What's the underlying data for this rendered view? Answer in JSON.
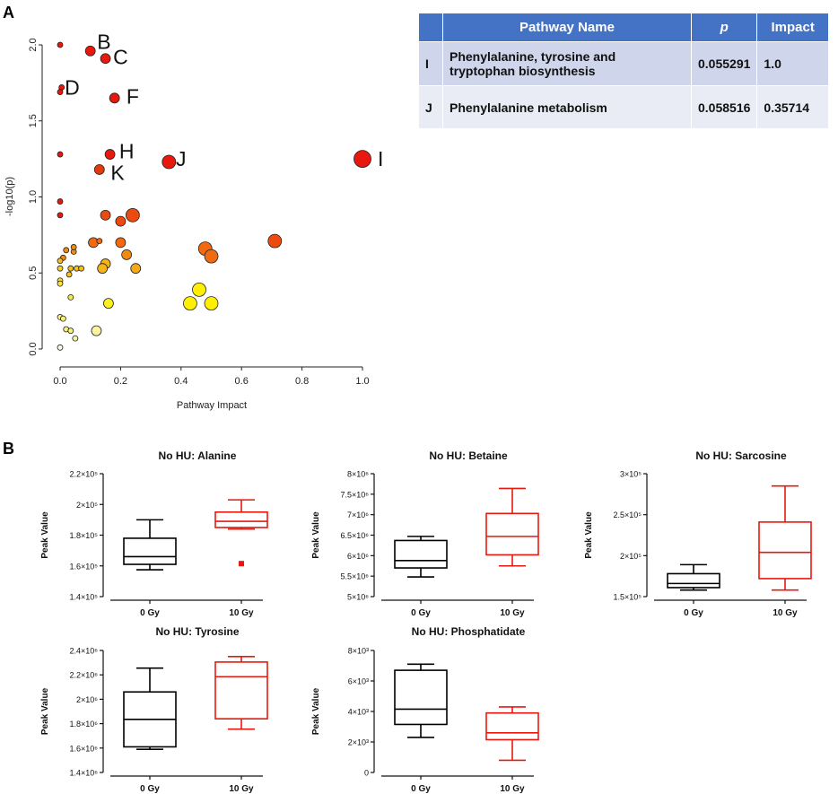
{
  "panels": {
    "a_label": "A",
    "b_label": "B"
  },
  "chart_data": [
    {
      "type": "scatter",
      "title": "",
      "xlabel": "Pathway Impact",
      "ylabel": "-log10(p)",
      "xlim": [
        0,
        1.0
      ],
      "ylim": [
        0,
        2.0
      ],
      "x_ticks": [
        "0.0",
        "0.2",
        "0.4",
        "0.6",
        "0.8",
        "1.0"
      ],
      "y_ticks": [
        "0.0",
        "0.5",
        "1.0",
        "1.5",
        "2.0"
      ],
      "points": [
        {
          "x": 0.0,
          "y": 2.0,
          "size": 1,
          "color": "#e8180e"
        },
        {
          "x": 0.1,
          "y": 1.96,
          "size": 2,
          "color": "#e8180e"
        },
        {
          "x": 0.15,
          "y": 1.91,
          "size": 2,
          "color": "#e8180e"
        },
        {
          "x": 0.005,
          "y": 1.72,
          "size": 1,
          "color": "#e8180e"
        },
        {
          "x": 0.0,
          "y": 1.69,
          "size": 1,
          "color": "#e8180e"
        },
        {
          "x": 0.18,
          "y": 1.65,
          "size": 2,
          "color": "#e8180e"
        },
        {
          "x": 0.0,
          "y": 1.28,
          "size": 1,
          "color": "#e8180e"
        },
        {
          "x": 0.165,
          "y": 1.28,
          "size": 2,
          "color": "#e8180e"
        },
        {
          "x": 0.36,
          "y": 1.23,
          "size": 3,
          "color": "#e8180e"
        },
        {
          "x": 1.0,
          "y": 1.25,
          "size": 4,
          "color": "#e8180e"
        },
        {
          "x": 0.13,
          "y": 1.18,
          "size": 2,
          "color": "#e23a0d"
        },
        {
          "x": 0.0,
          "y": 0.97,
          "size": 1,
          "color": "#e8180e"
        },
        {
          "x": 0.0,
          "y": 0.88,
          "size": 1,
          "color": "#e8180e"
        },
        {
          "x": 0.15,
          "y": 0.88,
          "size": 2,
          "color": "#ec4a0e"
        },
        {
          "x": 0.24,
          "y": 0.88,
          "size": 3,
          "color": "#ec4a0e"
        },
        {
          "x": 0.2,
          "y": 0.84,
          "size": 2,
          "color": "#ec4a0e"
        },
        {
          "x": 0.01,
          "y": 0.6,
          "size": 1,
          "color": "#f28a10"
        },
        {
          "x": 0.02,
          "y": 0.65,
          "size": 1,
          "color": "#f28a10"
        },
        {
          "x": 0.045,
          "y": 0.64,
          "size": 1,
          "color": "#f28a10"
        },
        {
          "x": 0.045,
          "y": 0.67,
          "size": 1,
          "color": "#f28a10"
        },
        {
          "x": 0.11,
          "y": 0.7,
          "size": 2,
          "color": "#f26a10"
        },
        {
          "x": 0.13,
          "y": 0.71,
          "size": 1,
          "color": "#f26a10"
        },
        {
          "x": 0.2,
          "y": 0.7,
          "size": 2,
          "color": "#f26a10"
        },
        {
          "x": 0.48,
          "y": 0.66,
          "size": 3,
          "color": "#f26a10"
        },
        {
          "x": 0.5,
          "y": 0.61,
          "size": 3,
          "color": "#f26a10"
        },
        {
          "x": 0.71,
          "y": 0.71,
          "size": 3,
          "color": "#ec4a0e"
        },
        {
          "x": 0.22,
          "y": 0.62,
          "size": 2,
          "color": "#f28a10"
        },
        {
          "x": 0.0,
          "y": 0.58,
          "size": 1,
          "color": "#f6c018"
        },
        {
          "x": 0.0,
          "y": 0.53,
          "size": 1,
          "color": "#f6d020"
        },
        {
          "x": 0.035,
          "y": 0.53,
          "size": 1,
          "color": "#f6c018"
        },
        {
          "x": 0.055,
          "y": 0.53,
          "size": 1,
          "color": "#f6c018"
        },
        {
          "x": 0.07,
          "y": 0.53,
          "size": 1,
          "color": "#f6c018"
        },
        {
          "x": 0.03,
          "y": 0.49,
          "size": 1,
          "color": "#f6c018"
        },
        {
          "x": 0.15,
          "y": 0.56,
          "size": 2,
          "color": "#f6b418"
        },
        {
          "x": 0.14,
          "y": 0.53,
          "size": 2,
          "color": "#f6b418"
        },
        {
          "x": 0.25,
          "y": 0.53,
          "size": 2,
          "color": "#f6a818"
        },
        {
          "x": 0.0,
          "y": 0.45,
          "size": 1,
          "color": "#f8e040"
        },
        {
          "x": 0.0,
          "y": 0.43,
          "size": 1,
          "color": "#f8e040"
        },
        {
          "x": 0.035,
          "y": 0.34,
          "size": 1,
          "color": "#f8e848"
        },
        {
          "x": 0.46,
          "y": 0.39,
          "size": 3,
          "color": "#fef000"
        },
        {
          "x": 0.16,
          "y": 0.3,
          "size": 2,
          "color": "#fef020"
        },
        {
          "x": 0.43,
          "y": 0.3,
          "size": 3,
          "color": "#fef000"
        },
        {
          "x": 0.5,
          "y": 0.3,
          "size": 3,
          "color": "#fef000"
        },
        {
          "x": 0.0,
          "y": 0.21,
          "size": 1,
          "color": "#fbf07a"
        },
        {
          "x": 0.01,
          "y": 0.2,
          "size": 1,
          "color": "#fbf07a"
        },
        {
          "x": 0.02,
          "y": 0.13,
          "size": 1,
          "color": "#fbf07a"
        },
        {
          "x": 0.035,
          "y": 0.12,
          "size": 1,
          "color": "#fbf07a"
        },
        {
          "x": 0.12,
          "y": 0.12,
          "size": 2,
          "color": "#fbf3a0"
        },
        {
          "x": 0.05,
          "y": 0.07,
          "size": 1,
          "color": "#fbf3a0"
        },
        {
          "x": 0.0,
          "y": 0.01,
          "size": 1,
          "color": "#fefbe0"
        }
      ],
      "annotations": [
        {
          "text": "B",
          "x": 0.145,
          "y": 2.02
        },
        {
          "text": "C",
          "x": 0.2,
          "y": 1.92
        },
        {
          "text": "D",
          "x": 0.04,
          "y": 1.72
        },
        {
          "text": "F",
          "x": 0.24,
          "y": 1.66
        },
        {
          "text": "H",
          "x": 0.22,
          "y": 1.3
        },
        {
          "text": "J",
          "x": 0.4,
          "y": 1.25
        },
        {
          "text": "K",
          "x": 0.19,
          "y": 1.16
        },
        {
          "text": "I",
          "x": 1.06,
          "y": 1.25
        }
      ]
    },
    {
      "type": "box",
      "title": "No HU: Alanine",
      "ylabel": "Peak Value",
      "ylim": [
        140000,
        220000
      ],
      "y_ticks": [
        "1.4×10⁵",
        "1.6×10⁵",
        "1.8×10⁵",
        "2×10⁵",
        "2.2×10⁵"
      ],
      "categories": [
        "0 Gy",
        "10 Gy"
      ],
      "boxes": [
        {
          "min": 157500,
          "q1": 161000,
          "median": 166000,
          "q3": 178000,
          "max": 190000
        },
        {
          "min": 184000,
          "q1": 185000,
          "median": 189000,
          "q3": 195000,
          "max": 203000,
          "outliers": [
            161500
          ]
        }
      ]
    },
    {
      "type": "box",
      "title": "No HU: Betaine",
      "ylabel": "Peak Value",
      "ylim": [
        5000000,
        8000000
      ],
      "y_ticks": [
        "5×10⁶",
        "5.5×10⁶",
        "6×10⁶",
        "6.5×10⁶",
        "7×10⁶",
        "7.5×10⁶",
        "8×10⁶"
      ],
      "categories": [
        "0 Gy",
        "10 Gy"
      ],
      "boxes": [
        {
          "min": 5480000,
          "q1": 5700000,
          "median": 5880000,
          "q3": 6370000,
          "max": 6470000
        },
        {
          "min": 5750000,
          "q1": 6020000,
          "median": 6470000,
          "q3": 7030000,
          "max": 7640000
        }
      ]
    },
    {
      "type": "box",
      "title": "No HU: Sarcosine",
      "ylabel": "Peak Value",
      "ylim": [
        150000,
        300000
      ],
      "y_ticks": [
        "1.5×10⁵",
        "2×10⁵",
        "2.5×10⁵",
        "3×10⁵"
      ],
      "categories": [
        "0 Gy",
        "10 Gy"
      ],
      "boxes": [
        {
          "min": 158000,
          "q1": 161000,
          "median": 166000,
          "q3": 178000,
          "max": 189000
        },
        {
          "min": 158000,
          "q1": 172000,
          "median": 204000,
          "q3": 241000,
          "max": 285000
        }
      ]
    },
    {
      "type": "box",
      "title": "No HU: Tyrosine",
      "ylabel": "Peak Value",
      "ylim": [
        1400000,
        2400000
      ],
      "y_ticks": [
        "1.4×10⁶",
        "1.6×10⁶",
        "1.8×10⁶",
        "2×10⁶",
        "2.2×10⁶",
        "2.4×10⁶"
      ],
      "categories": [
        "0 Gy",
        "10 Gy"
      ],
      "boxes": [
        {
          "min": 1590000,
          "q1": 1610000,
          "median": 1835000,
          "q3": 2060000,
          "max": 2255000
        },
        {
          "min": 1755000,
          "q1": 1840000,
          "median": 2185000,
          "q3": 2305000,
          "max": 2350000
        }
      ]
    },
    {
      "type": "box",
      "title": "No HU: Phosphatidate",
      "ylabel": "Peak Value",
      "ylim": [
        0,
        8000
      ],
      "y_ticks": [
        "0",
        "2×10³",
        "4×10³",
        "6×10³",
        "8×10³"
      ],
      "categories": [
        "0 Gy",
        "10 Gy"
      ],
      "boxes": [
        {
          "min": 2300,
          "q1": 3150,
          "median": 4150,
          "q3": 6700,
          "max": 7100
        },
        {
          "min": 800,
          "q1": 2150,
          "median": 2600,
          "q3": 3900,
          "max": 4300
        }
      ]
    }
  ],
  "table": {
    "headers": [
      "",
      "Pathway Name",
      "p",
      "Impact"
    ],
    "rows": [
      {
        "id": "I",
        "name_line1": "Phenylalanine, tyrosine and",
        "name_line2": "tryptophan biosynthesis",
        "p": "0.055291",
        "impact": "1.0"
      },
      {
        "id": "J",
        "name_line1": "Phenylalanine metabolism",
        "name_line2": "",
        "p": "0.058516",
        "impact": "0.35714"
      }
    ]
  },
  "colors": {
    "group0": "#000000",
    "group1": "#e8180e",
    "header_bg": "#4472c4"
  }
}
